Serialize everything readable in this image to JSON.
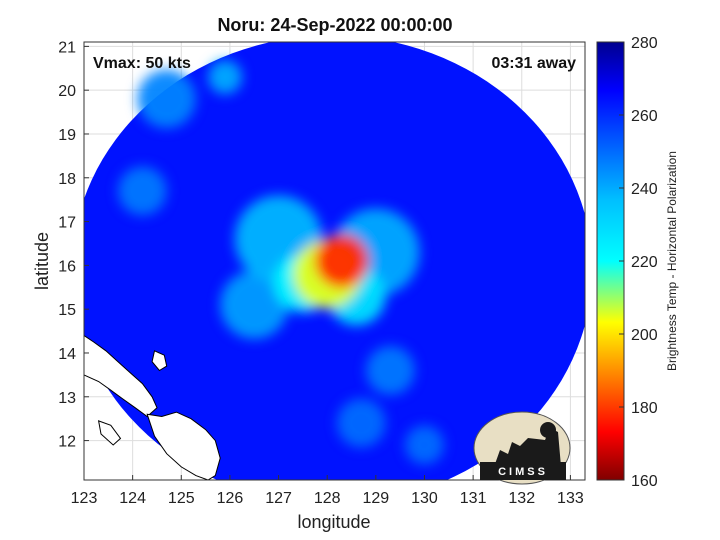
{
  "chart_data": {
    "type": "heatmap",
    "title": "Noru: 24-Sep-2022 00:00:00",
    "xlabel": "longitude",
    "ylabel": "latitude",
    "xlim": [
      123,
      133.3
    ],
    "ylim": [
      11.1,
      21.1
    ],
    "x_ticks": [
      "123",
      "124",
      "125",
      "126",
      "127",
      "128",
      "129",
      "130",
      "131",
      "132",
      "133"
    ],
    "y_ticks": [
      "12",
      "13",
      "14",
      "15",
      "16",
      "17",
      "18",
      "19",
      "20",
      "21"
    ],
    "grid": true,
    "annotations": {
      "vmax": "Vmax: 50 kts",
      "time_away": "03:31 away"
    },
    "colorbar": {
      "label": "Brightness Temp - Horizontal Polarization",
      "range": [
        160,
        280
      ],
      "ticks": [
        "160",
        "180",
        "200",
        "220",
        "240",
        "260",
        "280"
      ],
      "colormap": "jet"
    },
    "swath": {
      "center_lon": 128.1,
      "center_lat": 15.9,
      "radius_deg": 5.35
    },
    "background_temp": 264,
    "features": [
      {
        "lon": 128.3,
        "lat": 16.1,
        "radius": 0.55,
        "temp": 178
      },
      {
        "lon": 128.0,
        "lat": 15.8,
        "radius": 0.7,
        "temp": 205
      },
      {
        "lon": 127.5,
        "lat": 15.6,
        "radius": 0.6,
        "temp": 222
      },
      {
        "lon": 128.6,
        "lat": 15.3,
        "radius": 0.6,
        "temp": 228
      },
      {
        "lon": 127.0,
        "lat": 16.6,
        "radius": 0.9,
        "temp": 238
      },
      {
        "lon": 129.0,
        "lat": 16.3,
        "radius": 0.9,
        "temp": 240
      },
      {
        "lon": 126.5,
        "lat": 15.1,
        "radius": 0.7,
        "temp": 242
      },
      {
        "lon": 125.9,
        "lat": 20.3,
        "radius": 0.35,
        "temp": 240
      },
      {
        "lon": 124.7,
        "lat": 19.8,
        "radius": 0.6,
        "temp": 246
      },
      {
        "lon": 124.2,
        "lat": 17.7,
        "radius": 0.5,
        "temp": 248
      },
      {
        "lon": 129.3,
        "lat": 13.6,
        "radius": 0.5,
        "temp": 248
      },
      {
        "lon": 128.7,
        "lat": 12.4,
        "radius": 0.5,
        "temp": 250
      },
      {
        "lon": 130.0,
        "lat": 11.9,
        "radius": 0.4,
        "temp": 250
      }
    ],
    "coastlines": [
      {
        "name": "Luzon",
        "lon": [
          123.0,
          123.2,
          123.45,
          123.7,
          123.95,
          124.2,
          124.4,
          124.5,
          124.3,
          124.05,
          123.8,
          123.55,
          123.3,
          123.0
        ],
        "lat": [
          14.4,
          14.25,
          14.05,
          13.8,
          13.55,
          13.3,
          13.0,
          12.75,
          12.55,
          12.75,
          12.95,
          13.15,
          13.35,
          13.5
        ]
      },
      {
        "name": "Catanduanes",
        "lon": [
          124.45,
          124.65,
          124.7,
          124.55,
          124.4
        ],
        "lat": [
          14.05,
          13.95,
          13.7,
          13.6,
          13.8
        ]
      },
      {
        "name": "Samar",
        "lon": [
          124.3,
          124.6,
          124.9,
          125.2,
          125.5,
          125.7,
          125.8,
          125.7,
          125.55,
          125.3,
          125.0,
          124.7,
          124.45,
          124.3
        ],
        "lat": [
          12.6,
          12.55,
          12.65,
          12.5,
          12.25,
          12.0,
          11.6,
          11.2,
          11.1,
          11.2,
          11.4,
          11.7,
          12.1,
          12.6
        ]
      },
      {
        "name": "Masbate",
        "lon": [
          123.3,
          123.55,
          123.75,
          123.6,
          123.35
        ],
        "lat": [
          12.45,
          12.35,
          12.05,
          11.9,
          12.15
        ]
      }
    ]
  }
}
